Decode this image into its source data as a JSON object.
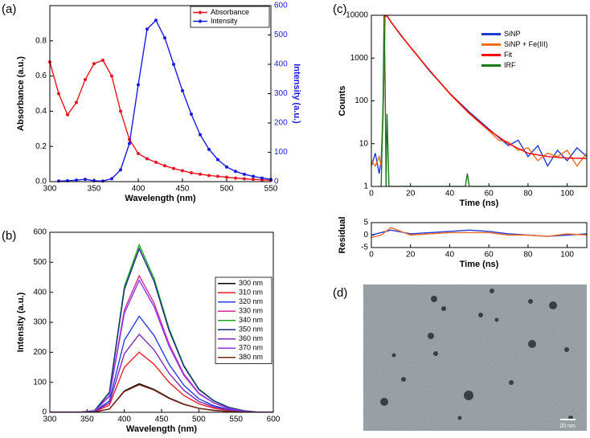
{
  "chart_data": [
    {
      "type": "line",
      "label": "(a)",
      "xlabel": "Wavelength (nm)",
      "ylabel": "Absorbance (a.u.)",
      "y2label": "Intensity (a.u.)",
      "xlim": [
        300,
        550
      ],
      "xticks": [
        300,
        350,
        400,
        450,
        500,
        550
      ],
      "ylim": [
        0,
        1
      ],
      "yticks": [
        {
          "value": 0,
          "label": "0.0"
        },
        {
          "value": 0.2,
          "label": "0.2"
        },
        {
          "value": 0.4,
          "label": "0.4"
        },
        {
          "value": 0.6,
          "label": "0.6"
        },
        {
          "value": 0.8,
          "label": "0.8"
        }
      ],
      "y2lim": [
        0,
        600
      ],
      "y2ticks": [
        0,
        100,
        200,
        300,
        400,
        500,
        600
      ],
      "markers": true,
      "legend": "upper right",
      "series": [
        {
          "name": "Absorbance",
          "color": "#e8141e",
          "x": [
            300,
            310,
            320,
            330,
            340,
            350,
            360,
            370,
            380,
            390,
            400,
            410,
            420,
            430,
            440,
            450,
            460,
            470,
            480,
            490,
            500,
            510,
            520,
            530,
            540,
            550
          ],
          "values": [
            0.68,
            0.5,
            0.38,
            0.45,
            0.58,
            0.67,
            0.69,
            0.6,
            0.4,
            0.24,
            0.16,
            0.13,
            0.11,
            0.09,
            0.075,
            0.062,
            0.05,
            0.042,
            0.035,
            0.03,
            0.025,
            0.02,
            0.016,
            0.013,
            0.01,
            0.008
          ]
        },
        {
          "name": "Intensity",
          "color": "#1a1ae6",
          "axis": "y2",
          "x": [
            310,
            320,
            330,
            340,
            350,
            360,
            370,
            380,
            390,
            400,
            410,
            420,
            430,
            440,
            450,
            460,
            470,
            480,
            490,
            500,
            510,
            520,
            530,
            540,
            550
          ],
          "values": [
            2,
            3,
            5,
            8,
            3,
            2,
            10,
            40,
            130,
            330,
            520,
            550,
            490,
            400,
            310,
            230,
            160,
            110,
            75,
            50,
            35,
            25,
            18,
            12,
            8
          ]
        }
      ]
    },
    {
      "type": "line",
      "label": "(b)",
      "xlabel": "Wavelength (nm)",
      "ylabel": "Intensity (a.u.)",
      "xlim": [
        300,
        600
      ],
      "xticks": [
        300,
        350,
        400,
        450,
        500,
        550,
        600
      ],
      "ylim": [
        0,
        600
      ],
      "yticks": [
        0,
        100,
        200,
        300,
        400,
        500,
        600
      ],
      "legend": "right",
      "x": [
        300,
        320,
        340,
        360,
        380,
        400,
        420,
        440,
        460,
        480,
        500,
        520,
        540,
        560,
        580,
        600
      ],
      "series": [
        {
          "name": "300 nm",
          "color": "#000000",
          "values": [
            0,
            0,
            0,
            1,
            11,
            71,
            95,
            76,
            48,
            27,
            13,
            7,
            3,
            1,
            0,
            0
          ]
        },
        {
          "name": "310 nm",
          "color": "#ee1c2c",
          "values": [
            0,
            0,
            0,
            2,
            24,
            150,
            200,
            160,
            100,
            56,
            28,
            14,
            6,
            2,
            0,
            0
          ]
        },
        {
          "name": "320 nm",
          "color": "#2a3ee0",
          "values": [
            0,
            0,
            0,
            3,
            38,
            240,
            320,
            256,
            160,
            90,
            45,
            22,
            10,
            3,
            0,
            0
          ]
        },
        {
          "name": "330 nm",
          "color": "#d42a9a",
          "values": [
            0,
            0,
            0,
            5,
            55,
            341,
            455,
            364,
            228,
            127,
            64,
            32,
            14,
            5,
            0,
            0
          ]
        },
        {
          "name": "340 nm",
          "color": "#1ea81e",
          "values": [
            0,
            0,
            0,
            6,
            67,
            419,
            558,
            446,
            279,
            156,
            78,
            39,
            17,
            6,
            0,
            0
          ]
        },
        {
          "name": "350 nm",
          "color": "#1c2a8a",
          "values": [
            0,
            0,
            0,
            5,
            65,
            409,
            545,
            436,
            273,
            153,
            76,
            38,
            16,
            5,
            0,
            0
          ]
        },
        {
          "name": "360 nm",
          "color": "#7a2ab8",
          "values": [
            0,
            0,
            0,
            3,
            31,
            195,
            260,
            208,
            130,
            73,
            36,
            18,
            8,
            3,
            0,
            0
          ]
        },
        {
          "name": "370 nm",
          "color": "#8a3ae8",
          "values": [
            0,
            0,
            0,
            4,
            53,
            330,
            440,
            352,
            220,
            123,
            62,
            31,
            13,
            4,
            0,
            0
          ]
        },
        {
          "name": "380 nm",
          "color": "#7a2a1a",
          "values": [
            0,
            0,
            0,
            1,
            11,
            69,
            92,
            74,
            46,
            26,
            13,
            6,
            3,
            1,
            0,
            0
          ]
        }
      ]
    },
    {
      "type": "line",
      "label": "(c)",
      "xlabel": "Time (ns)",
      "ylabel": "Counts",
      "log_y": true,
      "xlim": [
        0,
        110
      ],
      "xticks": [
        0,
        20,
        40,
        60,
        80,
        100
      ],
      "ylim": [
        1,
        10000
      ],
      "yticks": [
        1,
        10,
        100,
        1000,
        10000
      ],
      "legend": "upper right",
      "series": [
        {
          "name": "SiNP",
          "color": "#1f3bd6",
          "x": [
            0,
            2,
            4,
            5,
            6,
            7,
            8,
            10,
            15,
            20,
            30,
            40,
            50,
            60,
            65,
            70,
            75,
            80,
            85,
            90,
            95,
            100,
            105,
            110
          ],
          "values": [
            3,
            6,
            2,
            4,
            60,
            9500,
            9900,
            7000,
            3400,
            1800,
            480,
            150,
            55,
            22,
            14,
            9,
            12,
            5,
            9,
            3,
            7,
            4,
            8,
            5
          ]
        },
        {
          "name": "SiNP + Fe(III)",
          "color": "#f26b21",
          "x": [
            0,
            2,
            4,
            5,
            6,
            7,
            8,
            10,
            15,
            20,
            30,
            40,
            50,
            60,
            65,
            70,
            75,
            80,
            85,
            90,
            95,
            100,
            105,
            110
          ],
          "values": [
            4,
            3,
            5,
            3,
            40,
            9000,
            9700,
            6900,
            3500,
            1750,
            500,
            145,
            50,
            20,
            12,
            11,
            7,
            8,
            4,
            6,
            5,
            7,
            3,
            6
          ]
        },
        {
          "name": "Fit",
          "color": "#ff0000",
          "x": [
            6.5,
            7,
            8,
            10,
            15,
            20,
            30,
            40,
            50,
            60,
            70,
            80,
            90,
            100,
            110
          ],
          "values": [
            9000,
            10000,
            9600,
            7000,
            3500,
            1800,
            500,
            150,
            52,
            21,
            10,
            6,
            5,
            4.6,
            4.5
          ]
        },
        {
          "name": "IRF",
          "color": "#1a7a1a",
          "x": [
            4,
            5,
            6,
            6.5,
            7,
            7.5,
            8,
            9,
            10,
            20,
            48,
            49,
            50,
            110
          ],
          "values": [
            1,
            1,
            100,
            10000,
            300,
            1,
            50,
            1,
            1,
            1,
            1,
            2,
            1,
            1
          ]
        }
      ]
    },
    {
      "type": "line",
      "xlabel": "Time (ns)",
      "ylabel": "Residual",
      "xlim": [
        0,
        110
      ],
      "xticks": [
        0,
        20,
        40,
        60,
        80,
        100
      ],
      "ylim": [
        -5,
        5
      ],
      "yticks": [
        -5,
        0,
        5
      ],
      "x": [
        0,
        5,
        10,
        20,
        30,
        40,
        50,
        60,
        70,
        80,
        90,
        100,
        110
      ],
      "series": [
        {
          "name": "SiNP",
          "color": "#1f3bd6",
          "values": [
            0,
            1,
            2,
            0.5,
            1,
            1.5,
            2,
            1.5,
            0.5,
            0,
            -0.5,
            0,
            0.5
          ]
        },
        {
          "name": "SiNP + Fe(III)",
          "color": "#f26b21",
          "values": [
            -1,
            0,
            3,
            0,
            0.5,
            1,
            1,
            1,
            0,
            0,
            -0.5,
            0.5,
            0
          ]
        }
      ]
    }
  ],
  "image": {
    "label": "(d)",
    "scale_bar": "20 nm"
  }
}
